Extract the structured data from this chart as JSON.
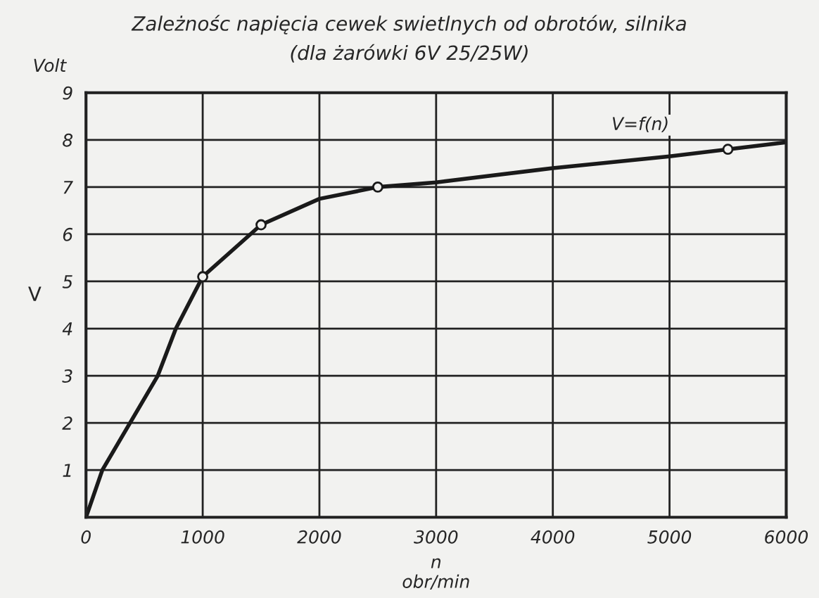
{
  "chart_data": {
    "type": "line",
    "title": "Zależnośc napięcia cewek swietlnych od obrotów, silnika",
    "subtitle": "(dla żarówki 6V 25/25W)",
    "xlabel": "n\nobr/min",
    "ylabel": "V",
    "annotations": [
      "Volt"
    ],
    "series": [
      {
        "name": "V=f(n)",
        "color": "#1a1a1a",
        "marker": "none",
        "x": [
          0,
          140,
          615,
          770,
          1000,
          1500,
          2000,
          2500,
          3000,
          4000,
          5000,
          5500,
          6000
        ],
        "values": [
          0,
          1,
          3,
          4,
          5.1,
          6.2,
          6.75,
          7.0,
          7.1,
          7.4,
          7.65,
          7.8,
          7.95
        ]
      },
      {
        "type": "scatter",
        "color": "#1a1a1a",
        "marker": "circle",
        "x": [
          1000,
          1500,
          2500,
          5500
        ],
        "values": [
          5.1,
          6.2,
          7.0,
          7.8
        ]
      }
    ],
    "xlim": [
      0,
      6000
    ],
    "xticks": [
      0,
      1000,
      2000,
      3000,
      4000,
      5000,
      6000
    ],
    "ylim": [
      0,
      9
    ],
    "yticks": [
      1,
      2,
      3,
      4,
      5,
      6,
      7,
      8,
      9
    ],
    "grid": true,
    "legend": false
  }
}
